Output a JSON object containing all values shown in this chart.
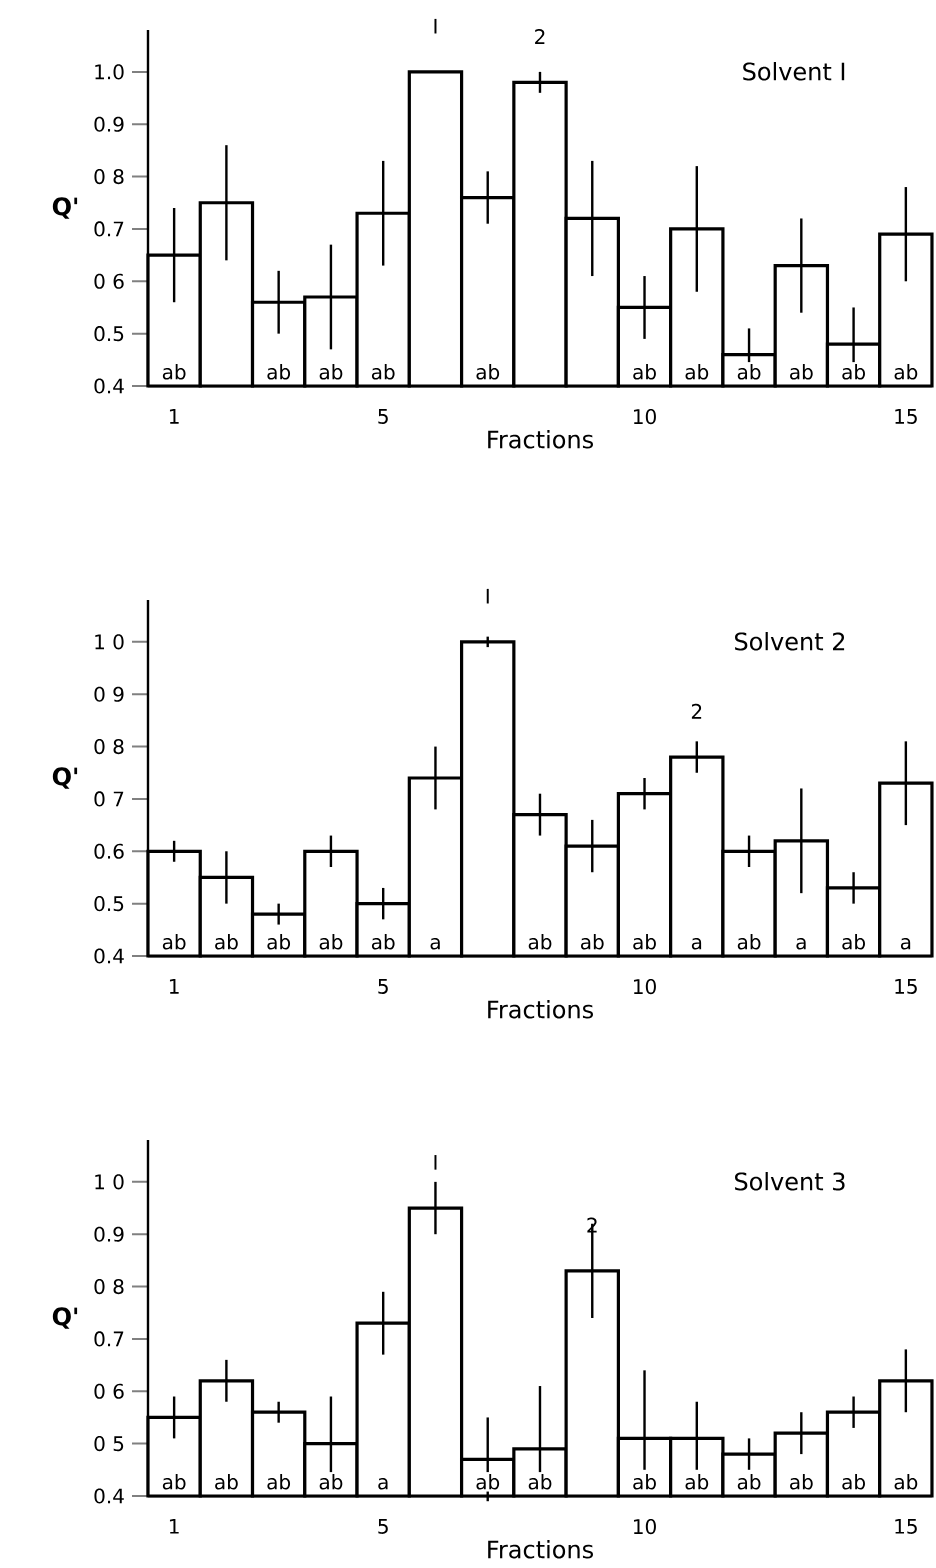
{
  "chart_data": [
    {
      "type": "bar",
      "title": "Solvent I",
      "xlabel": "Fractions",
      "ylabel": "Q'",
      "x": [
        1,
        2,
        3,
        4,
        5,
        6,
        7,
        8,
        9,
        10,
        11,
        12,
        13,
        14,
        15
      ],
      "color": "#000000",
      "values": [
        0.65,
        0.75,
        0.56,
        0.57,
        0.73,
        1.0,
        0.76,
        0.98,
        0.72,
        0.55,
        0.7,
        0.46,
        0.63,
        0.48,
        0.69
      ],
      "errors": [
        0.09,
        0.11,
        0.06,
        0.1,
        0.1,
        null,
        0.05,
        0.02,
        0.11,
        0.06,
        0.12,
        0.05,
        0.09,
        0.07,
        0.09
      ],
      "xlim": [
        0.5,
        15.5
      ],
      "ylim": [
        0.4,
        1.08
      ],
      "xticks": [
        1,
        5,
        10,
        15
      ],
      "yticks": [
        {
          "value": 0.4,
          "label": "0.4"
        },
        {
          "value": 0.5,
          "label": "0.5"
        },
        {
          "value": 0.6,
          "label": "0 6"
        },
        {
          "value": 0.7,
          "label": "0.7"
        },
        {
          "value": 0.8,
          "label": "0 8"
        },
        {
          "value": 0.9,
          "label": "0.9"
        },
        {
          "value": 1.0,
          "label": "1.0"
        }
      ],
      "annotations": [
        {
          "text": "ab",
          "x": 1,
          "y": 0.4
        },
        {
          "text": "ab",
          "x": 3,
          "y": 0.4
        },
        {
          "text": "ab",
          "x": 4,
          "y": 0.4
        },
        {
          "text": "ab",
          "x": 5,
          "y": 0.4
        },
        {
          "text": "ab",
          "x": 7,
          "y": 0.4
        },
        {
          "text": "ab",
          "x": 10,
          "y": 0.4
        },
        {
          "text": "ab",
          "x": 11,
          "y": 0.4
        },
        {
          "text": "ab",
          "x": 12,
          "y": 0.4
        },
        {
          "text": "ab",
          "x": 13,
          "y": 0.4
        },
        {
          "text": "ab",
          "x": 14,
          "y": 0.4
        },
        {
          "text": "ab",
          "x": 15,
          "y": 0.4
        },
        {
          "text": "I",
          "x": 6,
          "y": 1.0
        },
        {
          "text": "2",
          "x": 8,
          "y": 0.98
        }
      ]
    },
    {
      "type": "bar",
      "title": "Solvent 2",
      "xlabel": "Fractions",
      "ylabel": "Q'",
      "x": [
        1,
        2,
        3,
        4,
        5,
        6,
        7,
        8,
        9,
        10,
        11,
        12,
        13,
        14,
        15
      ],
      "color": "#000000",
      "values": [
        0.6,
        0.55,
        0.48,
        0.6,
        0.5,
        0.74,
        1.0,
        0.67,
        0.61,
        0.71,
        0.78,
        0.6,
        0.62,
        0.53,
        0.73
      ],
      "errors": [
        0.02,
        0.05,
        0.02,
        0.03,
        0.03,
        0.06,
        0.01,
        0.04,
        0.05,
        0.03,
        0.03,
        0.03,
        0.1,
        0.03,
        0.08
      ],
      "xlim": [
        0.5,
        15.5
      ],
      "ylim": [
        0.4,
        1.08
      ],
      "xticks": [
        1,
        5,
        10,
        15
      ],
      "yticks": [
        {
          "value": 0.4,
          "label": "0.4"
        },
        {
          "value": 0.5,
          "label": "0.5"
        },
        {
          "value": 0.6,
          "label": "0.6"
        },
        {
          "value": 0.7,
          "label": "0 7"
        },
        {
          "value": 0.8,
          "label": "0 8"
        },
        {
          "value": 0.9,
          "label": "0 9"
        },
        {
          "value": 1.0,
          "label": "1 0"
        }
      ],
      "annotations": [
        {
          "text": "ab",
          "x": 1,
          "y": 0.4
        },
        {
          "text": "ab",
          "x": 2,
          "y": 0.4
        },
        {
          "text": "ab",
          "x": 3,
          "y": 0.4
        },
        {
          "text": "ab",
          "x": 4,
          "y": 0.4
        },
        {
          "text": "ab",
          "x": 5,
          "y": 0.4
        },
        {
          "text": "a",
          "x": 6,
          "y": 0.4
        },
        {
          "text": "ab",
          "x": 8,
          "y": 0.4
        },
        {
          "text": "ab",
          "x": 9,
          "y": 0.4
        },
        {
          "text": "ab",
          "x": 10,
          "y": 0.4
        },
        {
          "text": "a",
          "x": 11,
          "y": 0.4
        },
        {
          "text": "ab",
          "x": 12,
          "y": 0.4
        },
        {
          "text": "a",
          "x": 13,
          "y": 0.4
        },
        {
          "text": "ab",
          "x": 14,
          "y": 0.4
        },
        {
          "text": "a",
          "x": 15,
          "y": 0.4
        },
        {
          "text": "I",
          "x": 7,
          "y": 1.0
        },
        {
          "text": "2",
          "x": 11,
          "y": 0.78
        }
      ]
    },
    {
      "type": "bar",
      "title": "Solvent 3",
      "xlabel": "Fractions",
      "ylabel": "Q'",
      "x": [
        1,
        2,
        3,
        4,
        5,
        6,
        7,
        8,
        9,
        10,
        11,
        12,
        13,
        14,
        15
      ],
      "color": "#000000",
      "values": [
        0.55,
        0.62,
        0.56,
        0.5,
        0.73,
        0.95,
        0.47,
        0.49,
        0.83,
        0.51,
        0.51,
        0.48,
        0.52,
        0.56,
        0.62
      ],
      "errors": [
        0.04,
        0.04,
        0.02,
        0.09,
        0.06,
        0.05,
        0.08,
        [
          0.44,
          0.61
        ],
        0.09,
        [
          0.45,
          0.64
        ],
        [
          0.45,
          0.58
        ],
        0.03,
        0.04,
        0.03,
        0.06
      ],
      "xlim": [
        0.5,
        15.5
      ],
      "ylim": [
        0.4,
        1.08
      ],
      "xticks": [
        1,
        5,
        10,
        15
      ],
      "yticks": [
        {
          "value": 0.4,
          "label": "0.4"
        },
        {
          "value": 0.5,
          "label": "0 5"
        },
        {
          "value": 0.6,
          "label": "0 6"
        },
        {
          "value": 0.7,
          "label": "0.7"
        },
        {
          "value": 0.8,
          "label": "0 8"
        },
        {
          "value": 0.9,
          "label": "0.9"
        },
        {
          "value": 1.0,
          "label": "1 0"
        }
      ],
      "annotations": [
        {
          "text": "ab",
          "x": 1,
          "y": 0.4
        },
        {
          "text": "ab",
          "x": 2,
          "y": 0.4
        },
        {
          "text": "ab",
          "x": 3,
          "y": 0.4
        },
        {
          "text": "ab",
          "x": 4,
          "y": 0.4
        },
        {
          "text": "a",
          "x": 5,
          "y": 0.4
        },
        {
          "text": "ab",
          "x": 7,
          "y": 0.4
        },
        {
          "text": "ab",
          "x": 8,
          "y": 0.4
        },
        {
          "text": "ab",
          "x": 10,
          "y": 0.4
        },
        {
          "text": "ab",
          "x": 11,
          "y": 0.4
        },
        {
          "text": "ab",
          "x": 12,
          "y": 0.4
        },
        {
          "text": "ab",
          "x": 13,
          "y": 0.4
        },
        {
          "text": "ab",
          "x": 14,
          "y": 0.4
        },
        {
          "text": "ab",
          "x": 15,
          "y": 0.4
        },
        {
          "text": "I",
          "x": 6,
          "y": 0.95
        },
        {
          "text": "2",
          "x": 9,
          "y": 0.83
        }
      ]
    }
  ]
}
